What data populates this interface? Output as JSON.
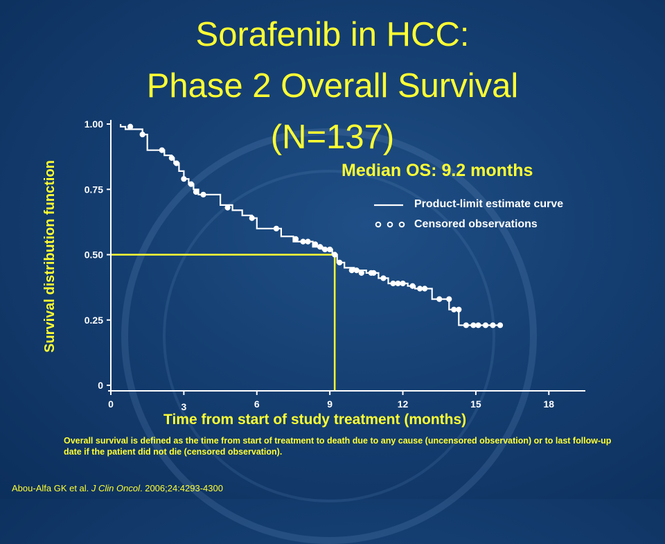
{
  "title": {
    "line1": "Sorafenib in HCC:",
    "line2": "Phase 2 Overall Survival",
    "line3": "(N=137)"
  },
  "median_text": "Median OS: 9.2 months",
  "legend": {
    "curve_label": "Product-limit estimate curve",
    "censored_label": "Censored observations"
  },
  "footnote": "Overall survival is defined as the time from start of treatment to death due to any cause (uncensored observation) or to last follow-up date if the patient did not die (censored observation).",
  "citation": {
    "authors": "Abou-Alfa GK et al.",
    "journal": "J Clin Oncol",
    "details": ". 2006;24:4293-4300"
  },
  "colors": {
    "accent": "#ffff33",
    "curve": "#ffffff",
    "background": "#153f72"
  },
  "chart_data": {
    "type": "line",
    "title": "",
    "xlabel": "Time from start of study treatment (months)",
    "ylabel": "Survival distribution function",
    "xlim": [
      0,
      19.5
    ],
    "ylim": [
      0,
      1.03
    ],
    "x_ticks": [
      "0",
      "3",
      "6",
      "9",
      "12",
      "15",
      "18"
    ],
    "x_tick_values": [
      0,
      3,
      6,
      9,
      12,
      15,
      18
    ],
    "y_ticks": [
      "0",
      "0.25",
      "0.50",
      "0.75",
      "1.00"
    ],
    "y_tick_values": [
      0,
      0.25,
      0.5,
      0.75,
      1.0
    ],
    "median_x": 9.2,
    "median_y": 0.5,
    "series": [
      {
        "name": "Product-limit estimate curve",
        "step": [
          [
            0.4,
            1.0
          ],
          [
            0.4,
            0.99
          ],
          [
            0.6,
            0.99
          ],
          [
            0.6,
            0.98
          ],
          [
            1.3,
            0.98
          ],
          [
            1.3,
            0.96
          ],
          [
            1.5,
            0.96
          ],
          [
            1.5,
            0.9
          ],
          [
            2.2,
            0.9
          ],
          [
            2.2,
            0.88
          ],
          [
            2.5,
            0.88
          ],
          [
            2.5,
            0.87
          ],
          [
            2.6,
            0.87
          ],
          [
            2.6,
            0.85
          ],
          [
            2.8,
            0.85
          ],
          [
            2.8,
            0.82
          ],
          [
            3.0,
            0.82
          ],
          [
            3.0,
            0.79
          ],
          [
            3.2,
            0.79
          ],
          [
            3.2,
            0.77
          ],
          [
            3.4,
            0.77
          ],
          [
            3.4,
            0.75
          ],
          [
            3.6,
            0.75
          ],
          [
            3.6,
            0.73
          ],
          [
            4.5,
            0.73
          ],
          [
            4.5,
            0.69
          ],
          [
            5.0,
            0.69
          ],
          [
            5.0,
            0.67
          ],
          [
            5.4,
            0.67
          ],
          [
            5.4,
            0.65
          ],
          [
            5.8,
            0.65
          ],
          [
            5.8,
            0.64
          ],
          [
            6.0,
            0.64
          ],
          [
            6.0,
            0.6
          ],
          [
            7.0,
            0.6
          ],
          [
            7.0,
            0.57
          ],
          [
            7.5,
            0.57
          ],
          [
            7.5,
            0.55
          ],
          [
            8.3,
            0.55
          ],
          [
            8.3,
            0.53
          ],
          [
            8.7,
            0.53
          ],
          [
            8.7,
            0.52
          ],
          [
            9.1,
            0.52
          ],
          [
            9.1,
            0.5
          ],
          [
            9.3,
            0.5
          ],
          [
            9.3,
            0.47
          ],
          [
            9.6,
            0.47
          ],
          [
            9.6,
            0.45
          ],
          [
            10.0,
            0.45
          ],
          [
            10.0,
            0.44
          ],
          [
            10.5,
            0.44
          ],
          [
            10.5,
            0.43
          ],
          [
            11.0,
            0.43
          ],
          [
            11.0,
            0.41
          ],
          [
            11.4,
            0.41
          ],
          [
            11.4,
            0.39
          ],
          [
            12.2,
            0.39
          ],
          [
            12.2,
            0.38
          ],
          [
            12.5,
            0.38
          ],
          [
            12.5,
            0.37
          ],
          [
            13.2,
            0.37
          ],
          [
            13.2,
            0.33
          ],
          [
            13.9,
            0.33
          ],
          [
            13.9,
            0.29
          ],
          [
            14.3,
            0.29
          ],
          [
            14.3,
            0.23
          ],
          [
            16.0,
            0.23
          ]
        ]
      },
      {
        "name": "Censored observations",
        "points": [
          [
            0.8,
            0.99
          ],
          [
            1.3,
            0.96
          ],
          [
            2.1,
            0.9
          ],
          [
            2.5,
            0.87
          ],
          [
            2.7,
            0.85
          ],
          [
            3.0,
            0.79
          ],
          [
            3.3,
            0.77
          ],
          [
            3.5,
            0.74
          ],
          [
            3.8,
            0.73
          ],
          [
            4.8,
            0.68
          ],
          [
            5.8,
            0.64
          ],
          [
            6.8,
            0.6
          ],
          [
            7.6,
            0.56
          ],
          [
            7.9,
            0.55
          ],
          [
            8.1,
            0.55
          ],
          [
            8.4,
            0.54
          ],
          [
            8.6,
            0.53
          ],
          [
            8.8,
            0.52
          ],
          [
            9.0,
            0.52
          ],
          [
            9.2,
            0.5
          ],
          [
            9.4,
            0.47
          ],
          [
            9.9,
            0.44
          ],
          [
            10.1,
            0.44
          ],
          [
            10.3,
            0.43
          ],
          [
            10.7,
            0.43
          ],
          [
            10.8,
            0.43
          ],
          [
            11.2,
            0.41
          ],
          [
            11.6,
            0.39
          ],
          [
            11.8,
            0.39
          ],
          [
            12.0,
            0.39
          ],
          [
            12.4,
            0.38
          ],
          [
            12.7,
            0.37
          ],
          [
            12.9,
            0.37
          ],
          [
            13.5,
            0.33
          ],
          [
            13.9,
            0.33
          ],
          [
            14.1,
            0.29
          ],
          [
            14.3,
            0.29
          ],
          [
            14.6,
            0.23
          ],
          [
            14.9,
            0.23
          ],
          [
            15.1,
            0.23
          ],
          [
            15.4,
            0.23
          ],
          [
            15.7,
            0.23
          ],
          [
            16.0,
            0.23
          ]
        ]
      }
    ]
  }
}
